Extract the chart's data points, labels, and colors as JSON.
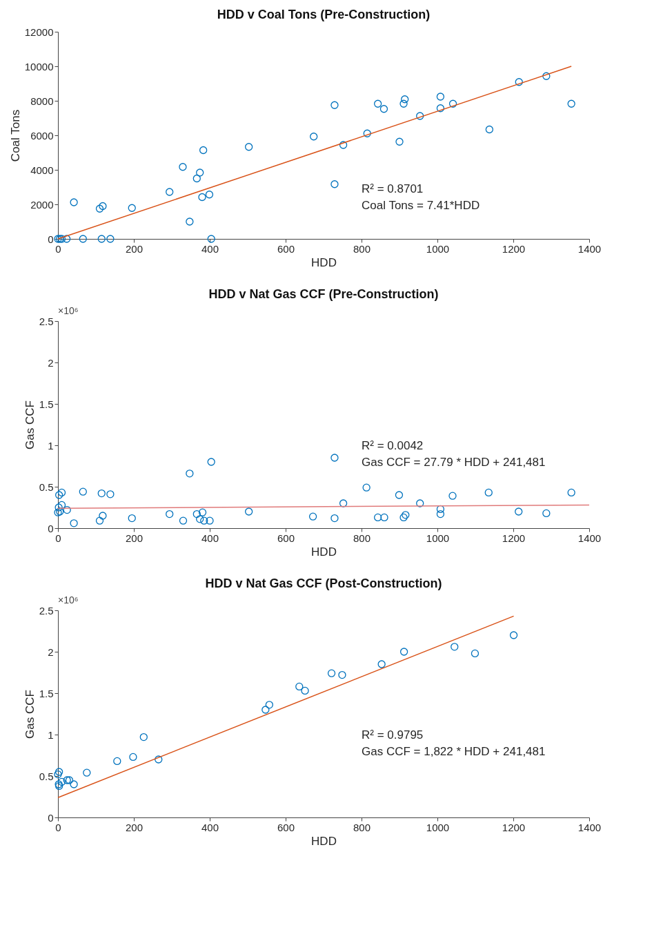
{
  "chart_data": [
    {
      "type": "scatter",
      "title": "HDD v Coal Tons (Pre-Construction)",
      "xlabel": "HDD",
      "ylabel": "Coal Tons",
      "xlim": [
        0,
        1400
      ],
      "xticks": [
        0,
        200,
        400,
        600,
        800,
        1000,
        1200,
        1400
      ],
      "ylim": [
        0,
        12000
      ],
      "yticks": [
        0,
        2000,
        4000,
        6000,
        8000,
        10000,
        12000
      ],
      "annotations": [
        "R² = 0.8701",
        "Coal Tons = 7.41*HDD"
      ],
      "series": [
        {
          "marker": "circle",
          "color": "#0072bd",
          "x": [
            0,
            5,
            10,
            23,
            42,
            66,
            110,
            118,
            115,
            138,
            195,
            294,
            329,
            347,
            366,
            374,
            380,
            383,
            399,
            404,
            503,
            674,
            729,
            729,
            752,
            815,
            843,
            859,
            900,
            911,
            914,
            954,
            1008,
            1008,
            1041,
            1137,
            1215,
            1287,
            1353
          ],
          "values": [
            0,
            0,
            0,
            0,
            2120,
            0,
            1750,
            1900,
            0,
            0,
            1790,
            2720,
            4170,
            1000,
            3500,
            3840,
            2420,
            5140,
            2570,
            0,
            5330,
            5930,
            7750,
            3170,
            5440,
            6110,
            7830,
            7530,
            5630,
            7830,
            8090,
            7120,
            7570,
            8240,
            7830,
            6340,
            9090,
            9430,
            7830
          ]
        },
        {
          "type": "line",
          "color": "#d95319",
          "x": [
            0,
            1353
          ],
          "values": [
            0,
            10000
          ]
        }
      ]
    },
    {
      "type": "scatter",
      "title": "HDD v Nat Gas CCF (Pre-Construction)",
      "xlabel": "HDD",
      "ylabel": "Gas CCF",
      "xlim": [
        0,
        1400
      ],
      "xticks": [
        0,
        200,
        400,
        600,
        800,
        1000,
        1200,
        1400
      ],
      "ylim": [
        0,
        2.5
      ],
      "yticks": [
        0,
        0.5,
        1,
        1.5,
        2,
        2.5
      ],
      "annotations": [
        "×10⁶",
        "R² = 0.0042",
        "Gas CCF = 27.79 * HDD + 241,481"
      ],
      "series": [
        {
          "marker": "circle",
          "color": "#0072bd",
          "x": [
            0,
            2,
            3,
            5,
            10,
            10,
            24,
            42,
            66,
            110,
            118,
            115,
            138,
            195,
            294,
            330,
            347,
            366,
            381,
            374,
            385,
            400,
            404,
            503,
            672,
            729,
            729,
            752,
            813,
            843,
            860,
            899,
            911,
            916,
            954,
            1008,
            1008,
            1040,
            1135,
            1214,
            1287,
            1353
          ],
          "values": [
            0.19,
            0.25,
            0.4,
            0.2,
            0.43,
            0.28,
            0.22,
            0.06,
            0.44,
            0.09,
            0.15,
            0.42,
            0.41,
            0.12,
            0.17,
            0.09,
            0.66,
            0.17,
            0.19,
            0.11,
            0.09,
            0.09,
            0.8,
            0.2,
            0.14,
            0.85,
            0.12,
            0.3,
            0.49,
            0.13,
            0.13,
            0.4,
            0.13,
            0.16,
            0.3,
            0.23,
            0.17,
            0.39,
            0.43,
            0.2,
            0.18,
            0.43
          ]
        },
        {
          "type": "line",
          "color": "#e07a7a",
          "x": [
            0,
            1400
          ],
          "values": [
            0.24,
            0.28
          ]
        }
      ]
    },
    {
      "type": "scatter",
      "title": "HDD v Nat Gas CCF (Post-Construction)",
      "xlabel": "HDD",
      "ylabel": "Gas CCF",
      "xlim": [
        0,
        1400
      ],
      "xticks": [
        0,
        200,
        400,
        600,
        800,
        1000,
        1200,
        1400
      ],
      "ylim": [
        0,
        2.5
      ],
      "yticks": [
        0,
        0.5,
        1,
        1.5,
        2,
        2.5
      ],
      "annotations": [
        "×10⁶",
        "R² = 0.9795",
        "Gas CCF = 1,822 * HDD + 241,481"
      ],
      "series": [
        {
          "marker": "circle",
          "color": "#0072bd",
          "x": [
            0,
            3,
            2,
            3,
            10,
            24,
            30,
            42,
            76,
            156,
            198,
            226,
            265,
            547,
            557,
            636,
            651,
            721,
            749,
            853,
            912,
            1045,
            1099,
            1201
          ],
          "values": [
            0.52,
            0.55,
            0.4,
            0.38,
            0.43,
            0.45,
            0.45,
            0.4,
            0.54,
            0.68,
            0.73,
            0.97,
            0.7,
            1.3,
            1.36,
            1.58,
            1.53,
            1.74,
            1.72,
            1.85,
            2.0,
            2.06,
            1.98,
            2.2
          ]
        },
        {
          "type": "line",
          "color": "#d95319",
          "x": [
            0,
            1201
          ],
          "values": [
            0.24,
            2.43
          ]
        }
      ]
    }
  ]
}
